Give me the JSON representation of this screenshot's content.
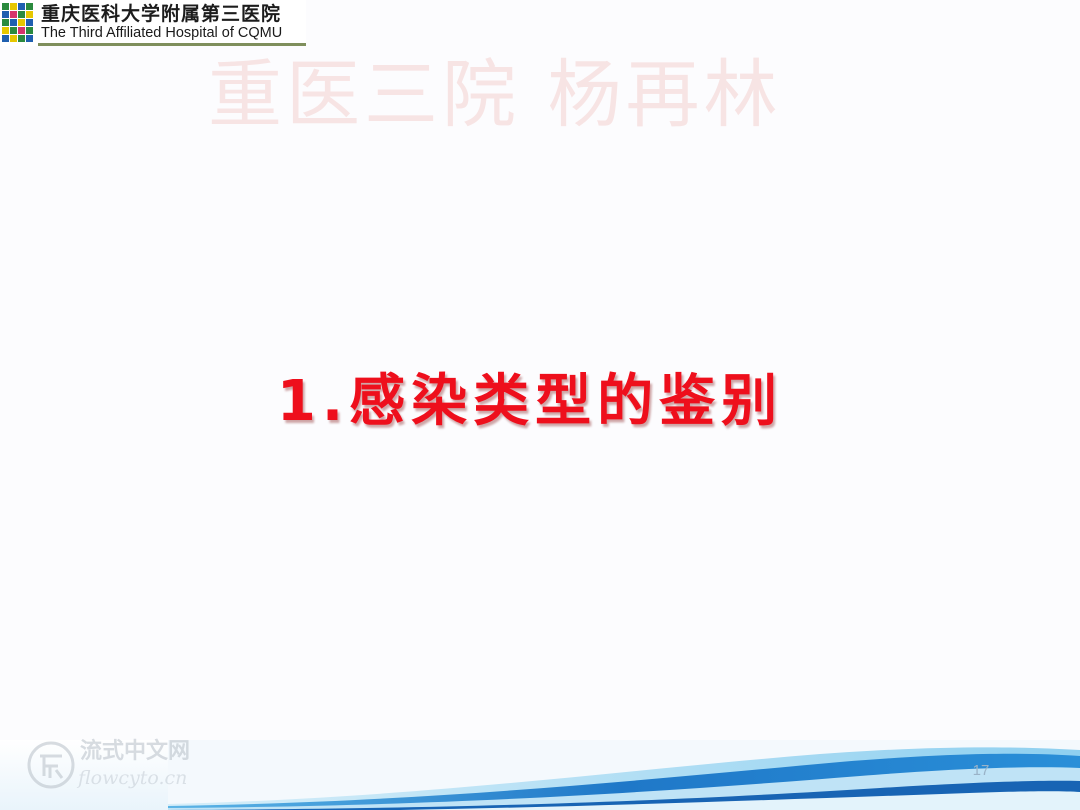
{
  "header": {
    "logo_cn": "重庆医科大学附属第三医院",
    "logo_en": "The Third Affiliated Hospital of CQMU"
  },
  "watermark": {
    "text": "重医三院 杨再林"
  },
  "slide": {
    "title": "1.感染类型的鉴别",
    "page_number": "17"
  },
  "site_mark": {
    "cn": "流式中文网",
    "en": "flowcyto.cn"
  },
  "colors": {
    "title": "#ee0f1c",
    "watermark": "#f7e4e4",
    "wave_dark": "#1f78c8",
    "wave_light": "#8fd0f0"
  },
  "icons": [
    "hospital-logo-mosaic-icon",
    "site-logo-icon"
  ]
}
